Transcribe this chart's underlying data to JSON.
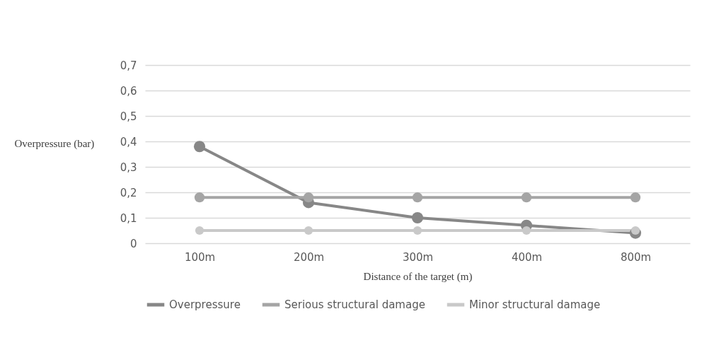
{
  "chart_data": {
    "type": "line",
    "xlabel": "Distance of the target (m)",
    "ylabel": "Overpressure (bar)",
    "categories": [
      "100m",
      "200m",
      "300m",
      "400m",
      "800m"
    ],
    "series": [
      {
        "name": "Overpressure",
        "color": "#878787",
        "values": [
          0.38,
          0.16,
          0.1,
          0.07,
          0.04
        ]
      },
      {
        "name": "Serious structural damage",
        "color": "#a5a5a5",
        "values": [
          0.18,
          0.18,
          0.18,
          0.18,
          0.18
        ]
      },
      {
        "name": "Minor structural damage",
        "color": "#c9c9c9",
        "values": [
          0.05,
          0.05,
          0.05,
          0.05,
          0.05
        ]
      }
    ],
    "ylim": [
      0,
      0.7
    ],
    "yticks": [
      {
        "value": 0,
        "label": "0"
      },
      {
        "value": 0.1,
        "label": "0,1"
      },
      {
        "value": 0.2,
        "label": "0,2"
      },
      {
        "value": 0.3,
        "label": "0,3"
      },
      {
        "value": 0.4,
        "label": "0,4"
      },
      {
        "value": 0.5,
        "label": "0,5"
      },
      {
        "value": 0.6,
        "label": "0,6"
      },
      {
        "value": 0.7,
        "label": "0,7"
      }
    ],
    "grid": "y",
    "legend": "bottom",
    "marker": "circle",
    "line_style": "solid"
  }
}
